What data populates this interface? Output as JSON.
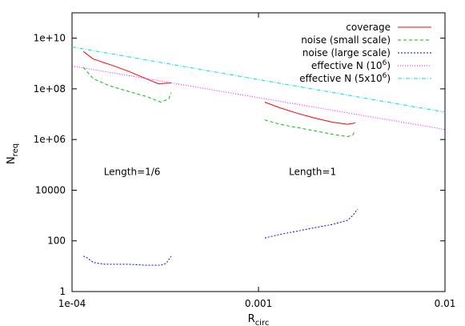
{
  "chart_data": {
    "type": "line",
    "title": "",
    "xlabel": {
      "main": "R",
      "sub": "circ"
    },
    "ylabel": {
      "main": "N",
      "sub": "req"
    },
    "xscale": "log",
    "yscale": "log",
    "xlim": [
      0.0001,
      0.01
    ],
    "ylim": [
      1,
      100000000000.0
    ],
    "x_ticks": [
      {
        "value": 0.0001,
        "label": "1e-04"
      },
      {
        "value": 0.001,
        "label": "0.001"
      },
      {
        "value": 0.01,
        "label": "0.01"
      }
    ],
    "y_ticks": [
      {
        "value": 1,
        "label": "1"
      },
      {
        "value": 100,
        "label": "100"
      },
      {
        "value": 10000,
        "label": "10000"
      },
      {
        "value": 1000000,
        "label": "1e+06"
      },
      {
        "value": 100000000,
        "label": "1e+08"
      },
      {
        "value": 10000000000,
        "label": "1e+10"
      }
    ],
    "legend_position": "top-right",
    "grid": false,
    "annotations": [
      {
        "text": "Length=1/6",
        "x": 0.00021,
        "y": 40000
      },
      {
        "text": "Length=1",
        "x": 0.00195,
        "y": 40000
      }
    ],
    "series": [
      {
        "name": "coverage",
        "legend_main": "coverage",
        "legend_sup": "",
        "legend_tail": "",
        "color": "#ff0000",
        "dash": "",
        "segments": [
          [
            [
              0.000115,
              3000000000.0
            ],
            [
              0.00013,
              1500000000.0
            ],
            [
              0.00016,
              900000000.0
            ],
            [
              0.0002,
              500000000.0
            ],
            [
              0.00025,
              250000000.0
            ],
            [
              0.00029,
              160000000.0
            ],
            [
              0.00034,
              170000000.0
            ]
          ],
          [
            [
              0.00108,
              30000000.0
            ],
            [
              0.0013,
              18000000.0
            ],
            [
              0.0016,
              11000000.0
            ],
            [
              0.002,
              7000000.0
            ],
            [
              0.0025,
              4800000.0
            ],
            [
              0.003,
              4000000.0
            ],
            [
              0.0033,
              4500000.0
            ]
          ]
        ]
      },
      {
        "name": "noise (small scale)",
        "legend_main": "noise (small scale)",
        "legend_sup": "",
        "legend_tail": "",
        "color": "#00c000",
        "dash": "4,3",
        "segments": [
          [
            [
              0.000115,
              700000000.0
            ],
            [
              0.00013,
              250000000.0
            ],
            [
              0.00016,
              130000000.0
            ],
            [
              0.0002,
              80000000.0
            ],
            [
              0.00025,
              50000000.0
            ],
            [
              0.0003,
              30000000.0
            ],
            [
              0.00033,
              40000000.0
            ],
            [
              0.00034,
              70000000.0
            ]
          ],
          [
            [
              0.00108,
              6000000.0
            ],
            [
              0.0013,
              4000000.0
            ],
            [
              0.0016,
              3000000.0
            ],
            [
              0.002,
              2200000.0
            ],
            [
              0.0025,
              1600000.0
            ],
            [
              0.003,
              1300000.0
            ],
            [
              0.0032,
              1500000.0
            ],
            [
              0.0033,
              2200000.0
            ]
          ]
        ]
      },
      {
        "name": "noise (large scale)",
        "legend_main": "noise (large scale)",
        "legend_sup": "",
        "legend_tail": "",
        "color": "#0000ff",
        "dash": "2,2",
        "segments": [
          [
            [
              0.000115,
              25
            ],
            [
              0.00012,
              22
            ],
            [
              0.00013,
              14
            ],
            [
              0.00015,
              12
            ],
            [
              0.0002,
              12
            ],
            [
              0.00025,
              11
            ],
            [
              0.0003,
              11
            ],
            [
              0.00032,
              13
            ],
            [
              0.00034,
              25
            ]
          ],
          [
            [
              0.00108,
              130
            ],
            [
              0.0013,
              180
            ],
            [
              0.0016,
              240
            ],
            [
              0.002,
              330
            ],
            [
              0.0025,
              450
            ],
            [
              0.003,
              650
            ],
            [
              0.0032,
              1000
            ],
            [
              0.0034,
              1800
            ]
          ]
        ]
      },
      {
        "name": "effective N (10^6)",
        "legend_main": "effective N (10",
        "legend_sup": "6",
        "legend_tail": ")",
        "color": "#ff00ff",
        "dash": "1,2",
        "segments": [
          [
            [
              0.0001,
              800000000.0
            ],
            [
              0.01,
              2500000.0
            ]
          ]
        ]
      },
      {
        "name": "effective N (5x10^6)",
        "legend_main": "effective N (5x10",
        "legend_sup": "6",
        "legend_tail": ")",
        "color": "#00e0e0",
        "dash": "5,2,1,2",
        "segments": [
          [
            [
              0.0001,
              4500000000.0
            ],
            [
              0.01,
              12000000.0
            ]
          ]
        ]
      }
    ]
  }
}
